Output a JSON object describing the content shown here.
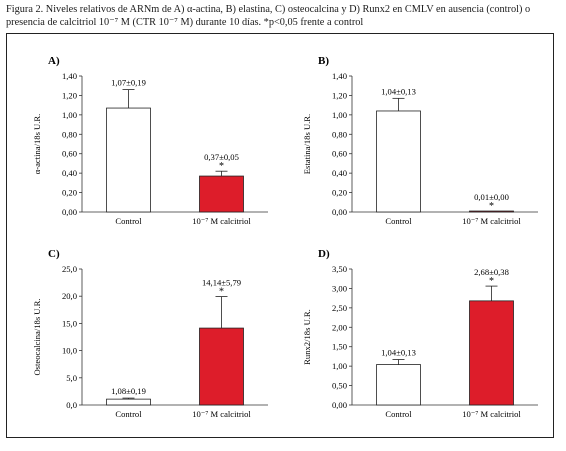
{
  "caption": "Figura 2. Niveles relativos de ARNm de A) α-actina, B) elastina, C) osteocalcina y D) Runx2 en CMLV en ausencia (control) o presencia de calcitriol 10⁻⁷ M (CTR 10⁻⁷ M) durante 10 días. *p<0,05 frente a control",
  "colors": {
    "control": "#ffffff",
    "calcitriol": "#dd1d2a",
    "axis": "#333333"
  },
  "chart_data": [
    {
      "type": "bar",
      "panel_label": "A)",
      "ylabel": "α-actina/18s U.R.",
      "categories": [
        "Control",
        "10⁻⁷ M calcitriol"
      ],
      "values": [
        1.07,
        0.37
      ],
      "errors": [
        0.19,
        0.05
      ],
      "data_labels": [
        "1,07±0,19",
        "0,37±0,05"
      ],
      "significance": [
        "",
        "*"
      ],
      "ylim": [
        0,
        1.4
      ],
      "yticks": [
        0,
        0.2,
        0.4,
        0.6,
        0.8,
        1.0,
        1.2,
        1.4
      ],
      "ytick_labels": [
        "0,00",
        "0,20",
        "0,40",
        "0,60",
        "0,80",
        "1,00",
        "1,20",
        "1,40"
      ]
    },
    {
      "type": "bar",
      "panel_label": "B)",
      "ylabel": "Estatina/18s U.R.",
      "categories": [
        "Control",
        "10⁻⁷ M calcitriol"
      ],
      "values": [
        1.04,
        0.01
      ],
      "errors": [
        0.13,
        0.0
      ],
      "data_labels": [
        "1,04±0,13",
        "0,01±0,00"
      ],
      "significance": [
        "",
        "*"
      ],
      "ylim": [
        0,
        1.4
      ],
      "yticks": [
        0,
        0.2,
        0.4,
        0.6,
        0.8,
        1.0,
        1.2,
        1.4
      ],
      "ytick_labels": [
        "0,00",
        "0,20",
        "0,40",
        "0,60",
        "0,80",
        "1,00",
        "1,20",
        "1,40"
      ]
    },
    {
      "type": "bar",
      "panel_label": "C)",
      "ylabel": "Osteocalcina/18s U.R.",
      "categories": [
        "Control",
        "10⁻⁷ M calcitriol"
      ],
      "values": [
        1.08,
        14.14
      ],
      "errors": [
        0.19,
        5.79
      ],
      "data_labels": [
        "1,08±0,19",
        "14,14±5,79"
      ],
      "significance": [
        "",
        "*"
      ],
      "ylim": [
        0,
        25
      ],
      "yticks": [
        0,
        5,
        10,
        15,
        20,
        25
      ],
      "ytick_labels": [
        "0,0",
        "5,0",
        "10,0",
        "15,0",
        "20,0",
        "25,0"
      ]
    },
    {
      "type": "bar",
      "panel_label": "D)",
      "ylabel": "Runx2/18s U.R.",
      "categories": [
        "Control",
        "10⁻⁷ M calcitriol"
      ],
      "values": [
        1.04,
        2.68
      ],
      "errors": [
        0.13,
        0.38
      ],
      "data_labels": [
        "1,04±0,13",
        "2,68±0,38"
      ],
      "significance": [
        "",
        "*"
      ],
      "ylim": [
        0,
        3.5
      ],
      "yticks": [
        0,
        0.5,
        1.0,
        1.5,
        2.0,
        2.5,
        3.0,
        3.5
      ],
      "ytick_labels": [
        "0,00",
        "0,50",
        "1,00",
        "1,50",
        "2,00",
        "2,50",
        "3,00",
        "3,50"
      ]
    }
  ]
}
